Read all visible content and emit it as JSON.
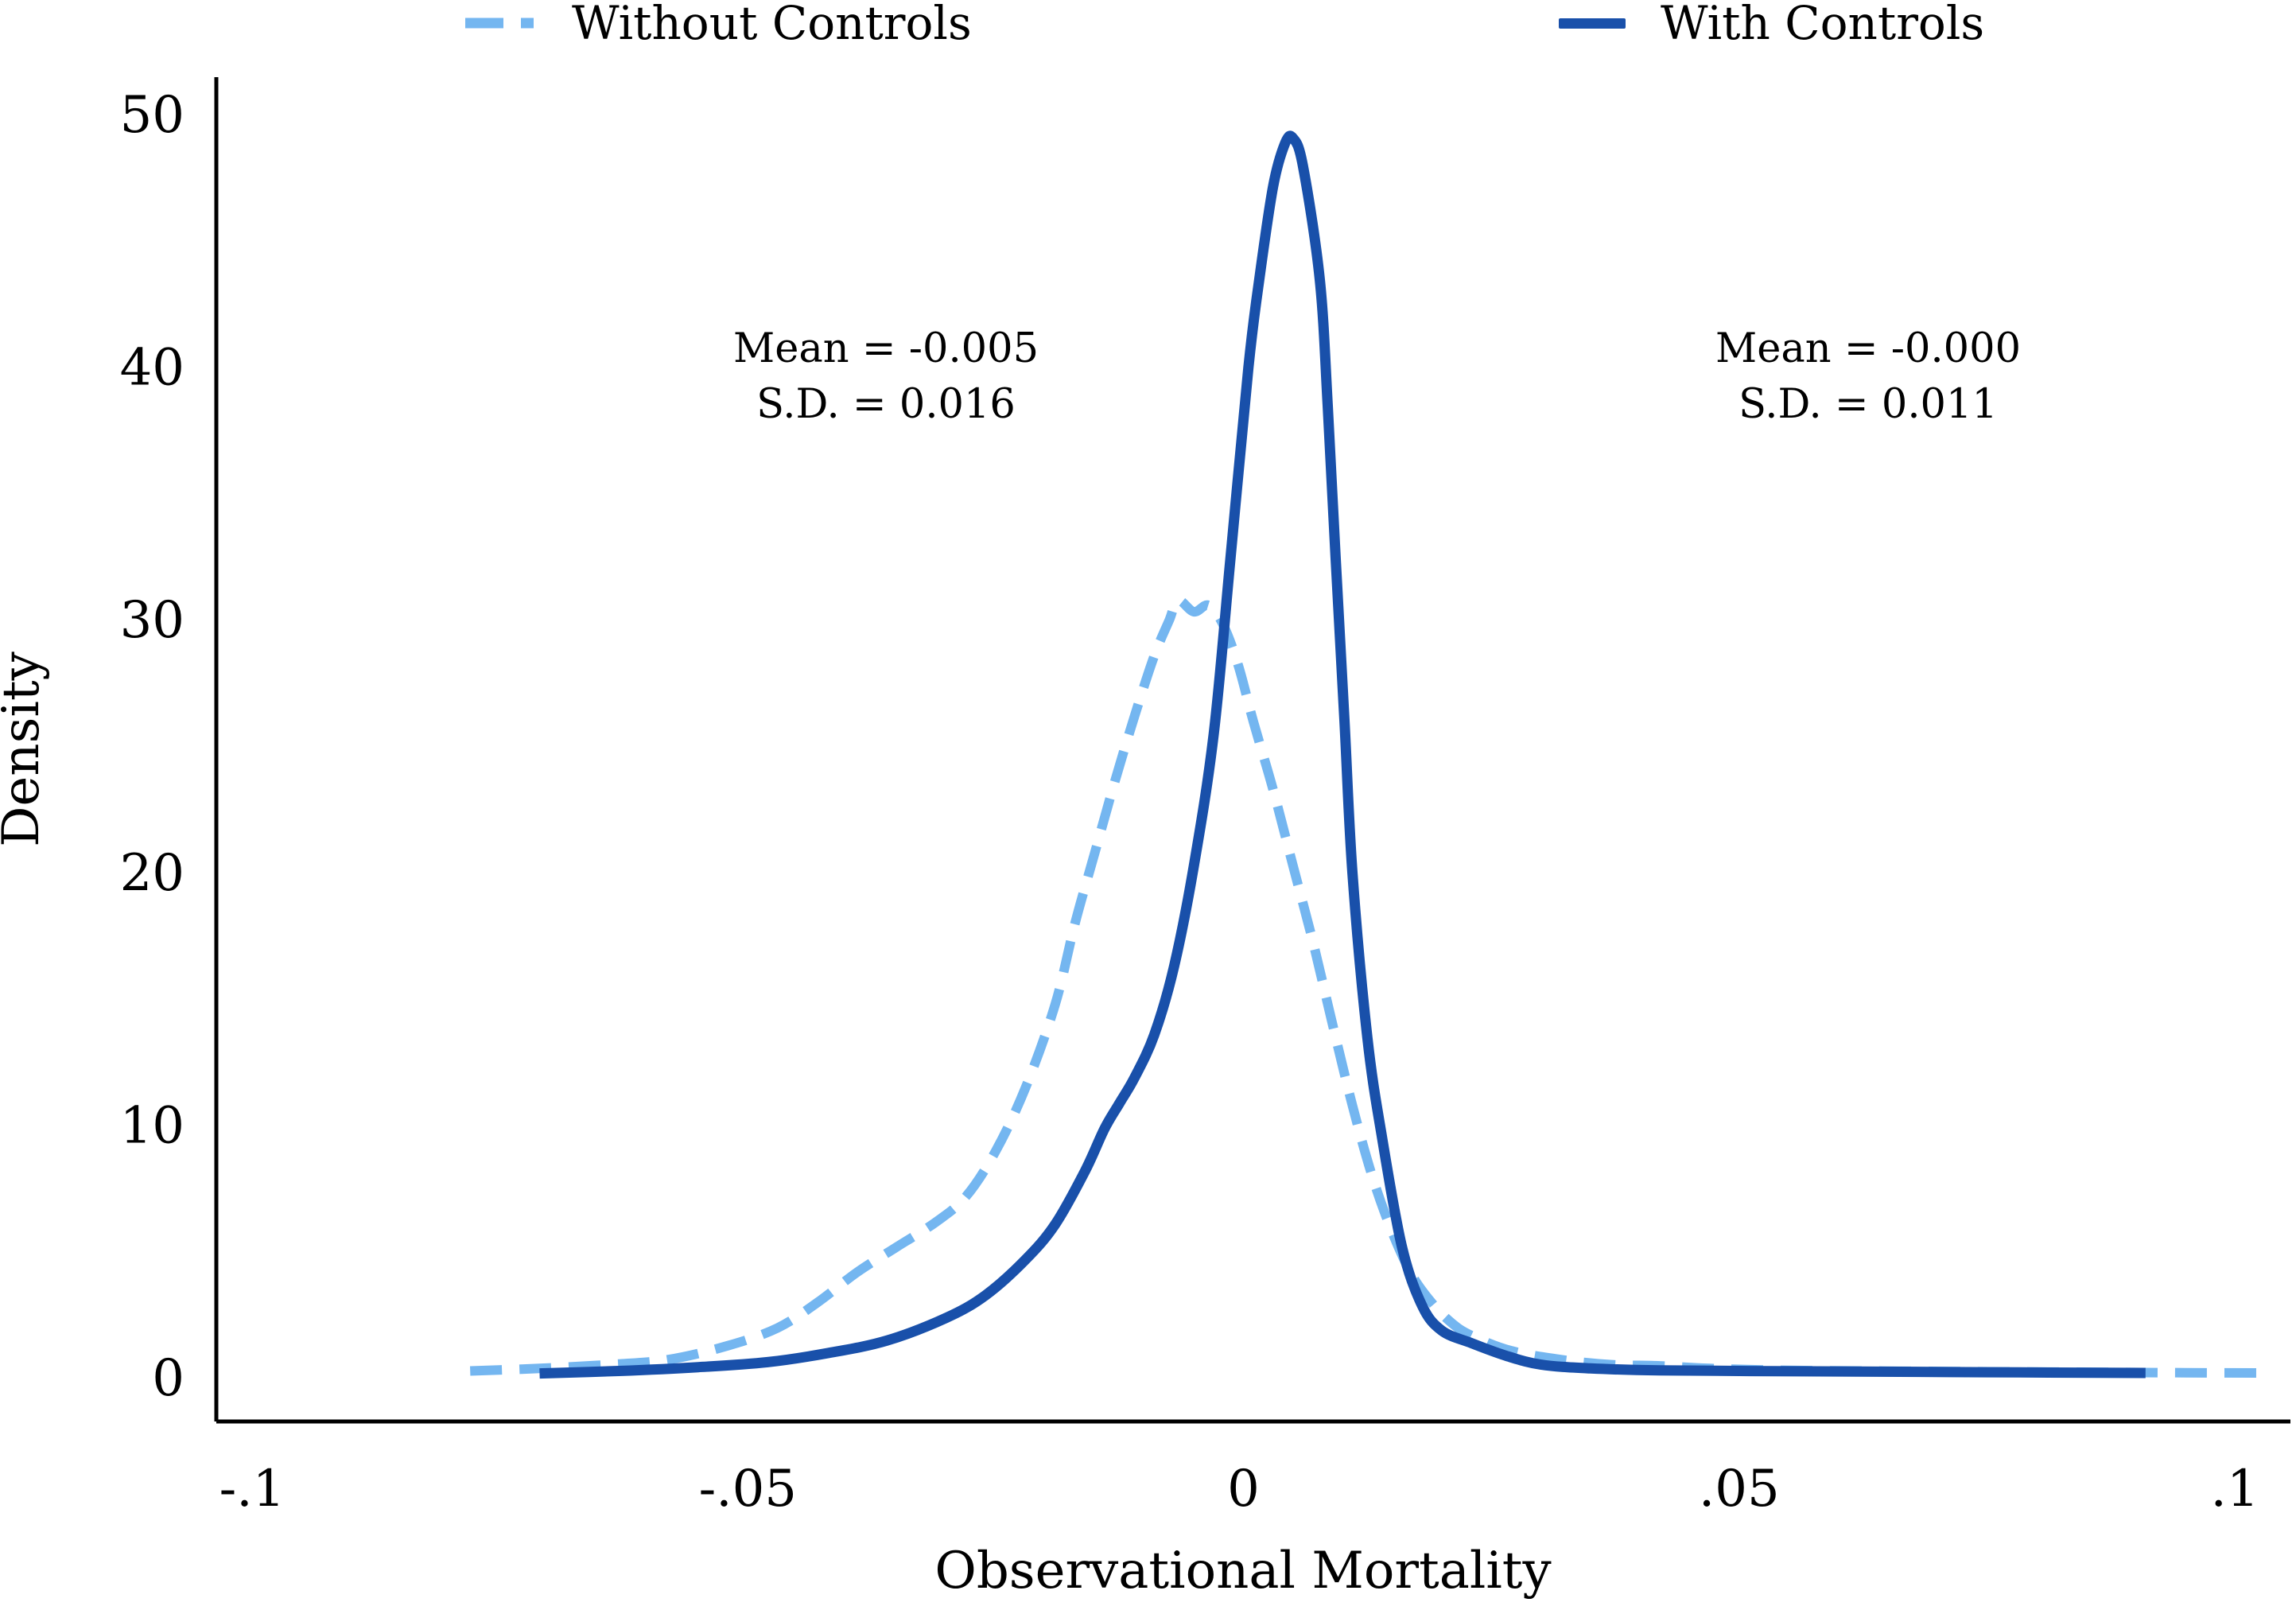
{
  "chart_data": {
    "type": "line",
    "title": "",
    "xlabel": "Observational Mortality",
    "ylabel": "Density",
    "xlim": [
      -0.104,
      0.106
    ],
    "ylim": [
      0,
      51.5
    ],
    "xticks": [
      -0.1,
      -0.05,
      0,
      0.05,
      0.1
    ],
    "xtick_labels": [
      "-.1",
      "-.05",
      "0",
      ".05",
      ".1"
    ],
    "yticks": [
      0,
      10,
      20,
      30,
      40,
      50
    ],
    "ytick_labels": [
      "0",
      "10",
      "20",
      "30",
      "40",
      "50"
    ],
    "grid": false,
    "legend_position": "top",
    "colors": {
      "without_controls": "#74b6f0",
      "with_controls": "#1950aa",
      "axis": "#000000"
    },
    "series": [
      {
        "name": "Without Controls",
        "style": "dashed",
        "color": "#74b6f0",
        "points": [
          [
            -0.078,
            0.3
          ],
          [
            -0.071,
            0.4
          ],
          [
            -0.064,
            0.55
          ],
          [
            -0.058,
            0.75
          ],
          [
            -0.052,
            1.3
          ],
          [
            -0.047,
            2.0
          ],
          [
            -0.043,
            3.0
          ],
          [
            -0.039,
            4.2
          ],
          [
            -0.035,
            5.2
          ],
          [
            -0.031,
            6.2
          ],
          [
            -0.028,
            7.2
          ],
          [
            -0.025,
            9.0
          ],
          [
            -0.022,
            11.5
          ],
          [
            -0.019,
            14.8
          ],
          [
            -0.017,
            18.0
          ],
          [
            -0.015,
            20.8
          ],
          [
            -0.013,
            23.6
          ],
          [
            -0.011,
            26.2
          ],
          [
            -0.009,
            28.6
          ],
          [
            -0.0075,
            30.0
          ],
          [
            -0.0066,
            30.8
          ],
          [
            -0.005,
            30.35
          ],
          [
            -0.0035,
            30.6
          ],
          [
            -0.002,
            29.8
          ],
          [
            -0.0005,
            28.2
          ],
          [
            0.001,
            26.0
          ],
          [
            0.003,
            23.3
          ],
          [
            0.005,
            20.3
          ],
          [
            0.007,
            17.3
          ],
          [
            0.009,
            14.0
          ],
          [
            0.011,
            10.8
          ],
          [
            0.013,
            8.0
          ],
          [
            0.015,
            5.8
          ],
          [
            0.017,
            4.1
          ],
          [
            0.019,
            3.0
          ],
          [
            0.021,
            2.2
          ],
          [
            0.023,
            1.7
          ],
          [
            0.027,
            1.1
          ],
          [
            0.032,
            0.75
          ],
          [
            0.037,
            0.55
          ],
          [
            0.042,
            0.5
          ],
          [
            0.047,
            0.4
          ],
          [
            0.055,
            0.32
          ],
          [
            0.07,
            0.28
          ],
          [
            0.085,
            0.25
          ],
          [
            0.095,
            0.23
          ],
          [
            0.103,
            0.22
          ]
        ]
      },
      {
        "name": "With Controls",
        "style": "solid",
        "color": "#1950aa",
        "points": [
          [
            -0.071,
            0.2
          ],
          [
            -0.063,
            0.3
          ],
          [
            -0.055,
            0.45
          ],
          [
            -0.048,
            0.65
          ],
          [
            -0.042,
            1.0
          ],
          [
            -0.036,
            1.5
          ],
          [
            -0.03,
            2.4
          ],
          [
            -0.026,
            3.3
          ],
          [
            -0.022,
            4.7
          ],
          [
            -0.019,
            6.1
          ],
          [
            -0.016,
            8.2
          ],
          [
            -0.014,
            9.9
          ],
          [
            -0.0125,
            10.9
          ],
          [
            -0.011,
            11.9
          ],
          [
            -0.009,
            13.6
          ],
          [
            -0.007,
            16.3
          ],
          [
            -0.005,
            20.3
          ],
          [
            -0.003,
            25.5
          ],
          [
            -0.0013,
            32.5
          ],
          [
            0.0005,
            40.0
          ],
          [
            0.0016,
            43.5
          ],
          [
            0.003,
            47.2
          ],
          [
            0.0042,
            48.9
          ],
          [
            0.005,
            49.1
          ],
          [
            0.006,
            48.0
          ],
          [
            0.0077,
            43.5
          ],
          [
            0.0085,
            38.5
          ],
          [
            0.0093,
            32.5
          ],
          [
            0.0102,
            26.0
          ],
          [
            0.011,
            20.0
          ],
          [
            0.0125,
            13.5
          ],
          [
            0.014,
            9.5
          ],
          [
            0.016,
            5.2
          ],
          [
            0.018,
            2.9
          ],
          [
            0.02,
            1.9
          ],
          [
            0.023,
            1.4
          ],
          [
            0.0265,
            0.9
          ],
          [
            0.03,
            0.55
          ],
          [
            0.035,
            0.4
          ],
          [
            0.042,
            0.32
          ],
          [
            0.05,
            0.3
          ],
          [
            0.06,
            0.28
          ],
          [
            0.075,
            0.25
          ],
          [
            0.091,
            0.22
          ]
        ]
      }
    ]
  },
  "legend": {
    "items": [
      {
        "label": "Without Controls",
        "style": "dashed",
        "color": "#74b6f0"
      },
      {
        "label": "With Controls",
        "style": "solid",
        "color": "#1950aa"
      }
    ]
  },
  "annotations": [
    {
      "lines": [
        "Mean = -0.005",
        "S.D. = 0.016"
      ]
    },
    {
      "lines": [
        "Mean = -0.000",
        "S.D. = 0.011"
      ]
    }
  ]
}
